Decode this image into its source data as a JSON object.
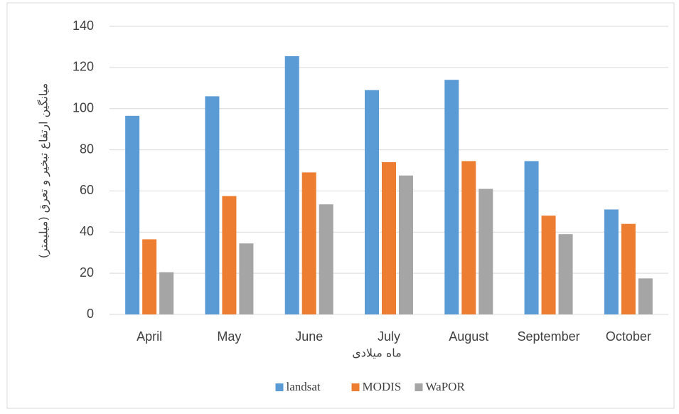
{
  "chart_data": {
    "type": "bar",
    "x_label": "ماه میلادی",
    "y_label": "میانگین ارتفاع تبخیر و تعرق (میلیمتر)",
    "categories": [
      "April",
      "May",
      "June",
      "July",
      "August",
      "September",
      "October"
    ],
    "series": [
      {
        "name": "landsat",
        "color": "#5b9bd5",
        "values": [
          96.5,
          106,
          125.5,
          109,
          114,
          74.5,
          51
        ]
      },
      {
        "name": "MODIS",
        "color": "#ed7d31",
        "values": [
          36.5,
          57.5,
          69,
          74,
          74.5,
          48,
          44
        ]
      },
      {
        "name": "WaPOR",
        "color": "#a5a5a5",
        "values": [
          20.5,
          34.5,
          53.5,
          67.5,
          61,
          39,
          17.5
        ]
      }
    ],
    "ylim": [
      0,
      140
    ],
    "yticks": [
      0,
      20,
      40,
      60,
      80,
      100,
      120,
      140
    ],
    "grid": true,
    "legend": "bottom"
  }
}
